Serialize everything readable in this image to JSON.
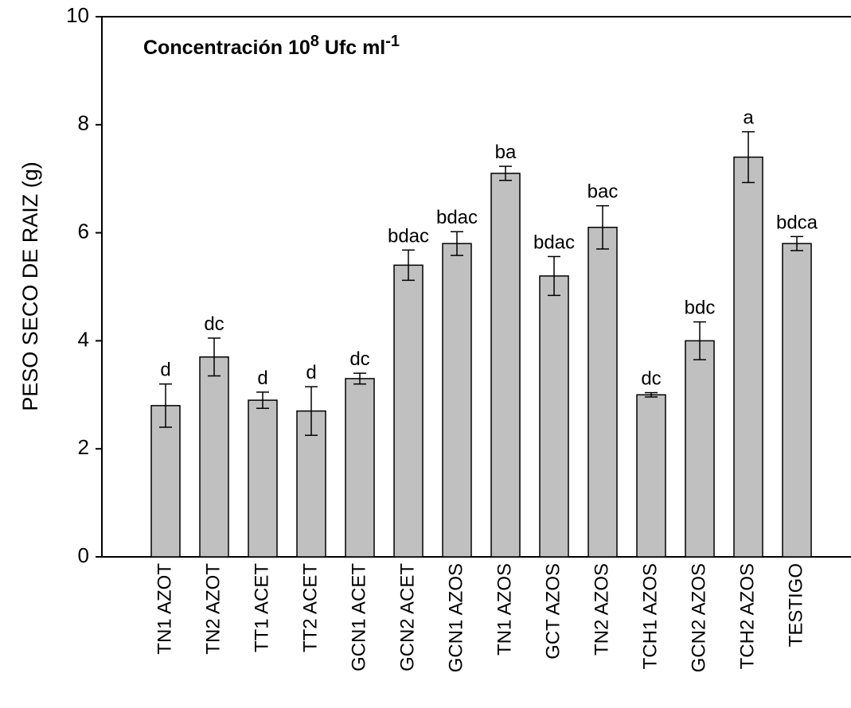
{
  "chart_data": {
    "type": "bar",
    "title": [
      "Concentración 10",
      "8",
      " Ufc ml",
      "-1"
    ],
    "y_label": "PESO SECO DE RAIZ (g)",
    "categories": [
      "TN1 AZOT",
      "TN2 AZOT",
      "TT1 ACET",
      "TT2 ACET",
      "GCN1 ACET",
      "GCN2 ACET",
      "GCN1 AZOS",
      "TN1 AZOS",
      "GCT AZOS",
      "TN2 AZOS",
      "TCH1 AZOS",
      "GCN2 AZOS",
      "TCH2 AZOS",
      "TESTIGO"
    ],
    "values": [
      2.8,
      3.7,
      2.9,
      2.7,
      3.3,
      5.4,
      5.8,
      7.1,
      5.2,
      6.1,
      3.0,
      4.0,
      7.4,
      5.8
    ],
    "errors": [
      0.4,
      0.35,
      0.15,
      0.45,
      0.1,
      0.28,
      0.22,
      0.13,
      0.36,
      0.4,
      0.04,
      0.35,
      0.47,
      0.13
    ],
    "annotations": [
      "d",
      "dc",
      "d",
      "d",
      "dc",
      "bdac",
      "bdac",
      "ba",
      "bdac",
      "bac",
      "dc",
      "bdc",
      "a",
      "bdca"
    ],
    "color": "#c0c0c0",
    "ylim": [
      0,
      10
    ],
    "yticks": [
      0,
      2,
      4,
      6,
      8,
      10
    ],
    "grid": false
  }
}
